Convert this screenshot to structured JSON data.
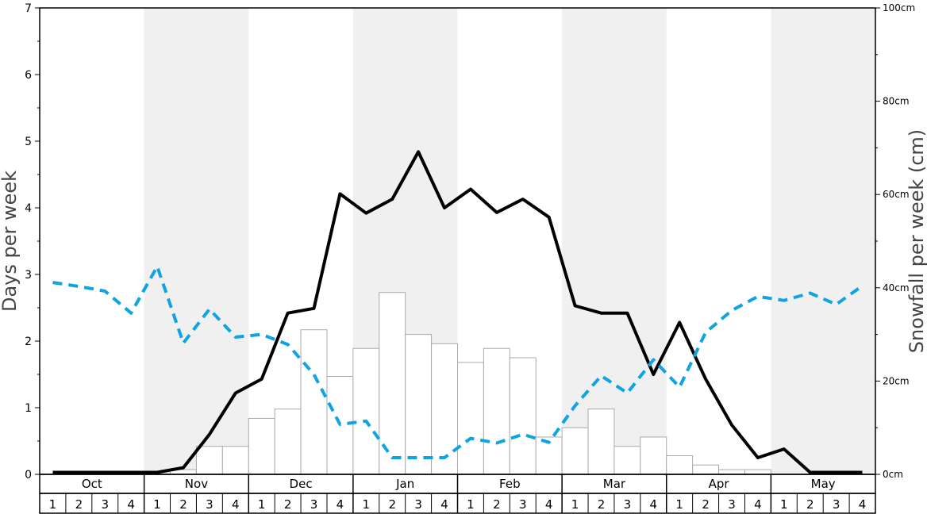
{
  "chart_data": {
    "type": "bar",
    "ylabel": "Days per week",
    "y2label": "Snowfall per week (cm)",
    "ylim": [
      0,
      7
    ],
    "y2lim": [
      0,
      100
    ],
    "yticks": [
      "0",
      "1",
      "2",
      "3",
      "4",
      "5",
      "6",
      "7"
    ],
    "y2ticks": [
      "0cm",
      "20cm",
      "40cm",
      "60cm",
      "80cm",
      "100cm"
    ],
    "months": [
      "Oct",
      "Nov",
      "Dec",
      "Jan",
      "Feb",
      "Mar",
      "Apr",
      "May"
    ],
    "weeks": [
      "1",
      "2",
      "3",
      "4"
    ],
    "shaded_months": [
      "Nov",
      "Jan",
      "Mar",
      "May"
    ],
    "grid": false,
    "colors": {
      "shade": "#f0f0f0",
      "bar_fill": "#ffffff",
      "bar_stroke": "#aaaaaa",
      "solid_line": "#000000",
      "dashed_line": "#0ea3e3"
    },
    "series": [
      {
        "kind": "bar",
        "axis": "right",
        "values": [
          0,
          0,
          0,
          0,
          0,
          1,
          6,
          6,
          12,
          14,
          31,
          21,
          27,
          39,
          30,
          28,
          24,
          27,
          25,
          8,
          10,
          14,
          6,
          8,
          4,
          2,
          1,
          1,
          0,
          0,
          0,
          0
        ]
      },
      {
        "kind": "line",
        "style": "solid",
        "axis": "left",
        "values": [
          0.03,
          0.03,
          0.03,
          0.03,
          0.03,
          0.1,
          0.6,
          1.22,
          1.43,
          2.42,
          2.49,
          4.21,
          3.92,
          4.13,
          4.84,
          4.0,
          4.28,
          3.93,
          4.13,
          3.86,
          2.53,
          2.42,
          2.42,
          1.5,
          2.28,
          1.43,
          0.74,
          0.25,
          0.38,
          0.03,
          0.03,
          0.03
        ]
      },
      {
        "kind": "line",
        "style": "dashed",
        "axis": "left",
        "values": [
          2.88,
          2.82,
          2.75,
          2.42,
          3.12,
          1.97,
          2.48,
          2.06,
          2.1,
          1.95,
          1.5,
          0.75,
          0.8,
          0.25,
          0.25,
          0.25,
          0.54,
          0.47,
          0.6,
          0.48,
          1.03,
          1.48,
          1.22,
          1.72,
          1.31,
          2.13,
          2.46,
          2.67,
          2.61,
          2.72,
          2.55,
          2.83
        ]
      }
    ]
  }
}
